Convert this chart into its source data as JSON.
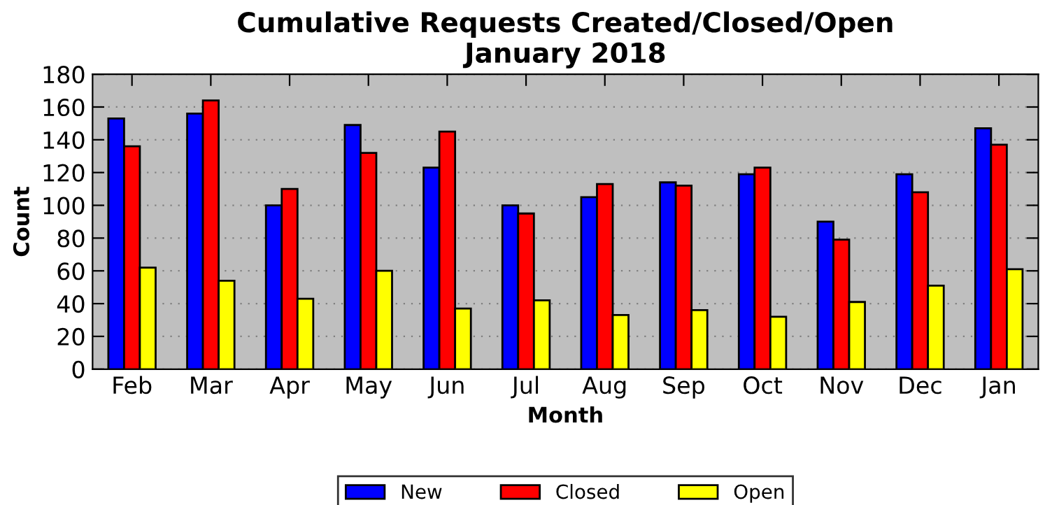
{
  "chart_data": {
    "type": "bar",
    "title": "Cumulative Requests Created/Closed/Open\nJanuary 2018",
    "xlabel": "Month",
    "ylabel": "Count",
    "categories": [
      "Feb",
      "Mar",
      "Apr",
      "May",
      "Jun",
      "Jul",
      "Aug",
      "Sep",
      "Oct",
      "Nov",
      "Dec",
      "Jan"
    ],
    "series": [
      {
        "name": "New",
        "color": "#0000ff",
        "values": [
          153,
          156,
          100,
          149,
          123,
          100,
          105,
          114,
          119,
          90,
          119,
          147
        ]
      },
      {
        "name": "Closed",
        "color": "#ff0000",
        "values": [
          136,
          164,
          110,
          132,
          145,
          95,
          113,
          112,
          123,
          79,
          108,
          137
        ]
      },
      {
        "name": "Open",
        "color": "#ffff00",
        "values": [
          62,
          54,
          43,
          60,
          37,
          42,
          33,
          36,
          32,
          41,
          51,
          61
        ]
      }
    ],
    "ylim": [
      0,
      180
    ],
    "yticks": [
      0,
      20,
      40,
      60,
      80,
      100,
      120,
      140,
      160,
      180
    ],
    "grid": "y",
    "legend": "bottom"
  }
}
